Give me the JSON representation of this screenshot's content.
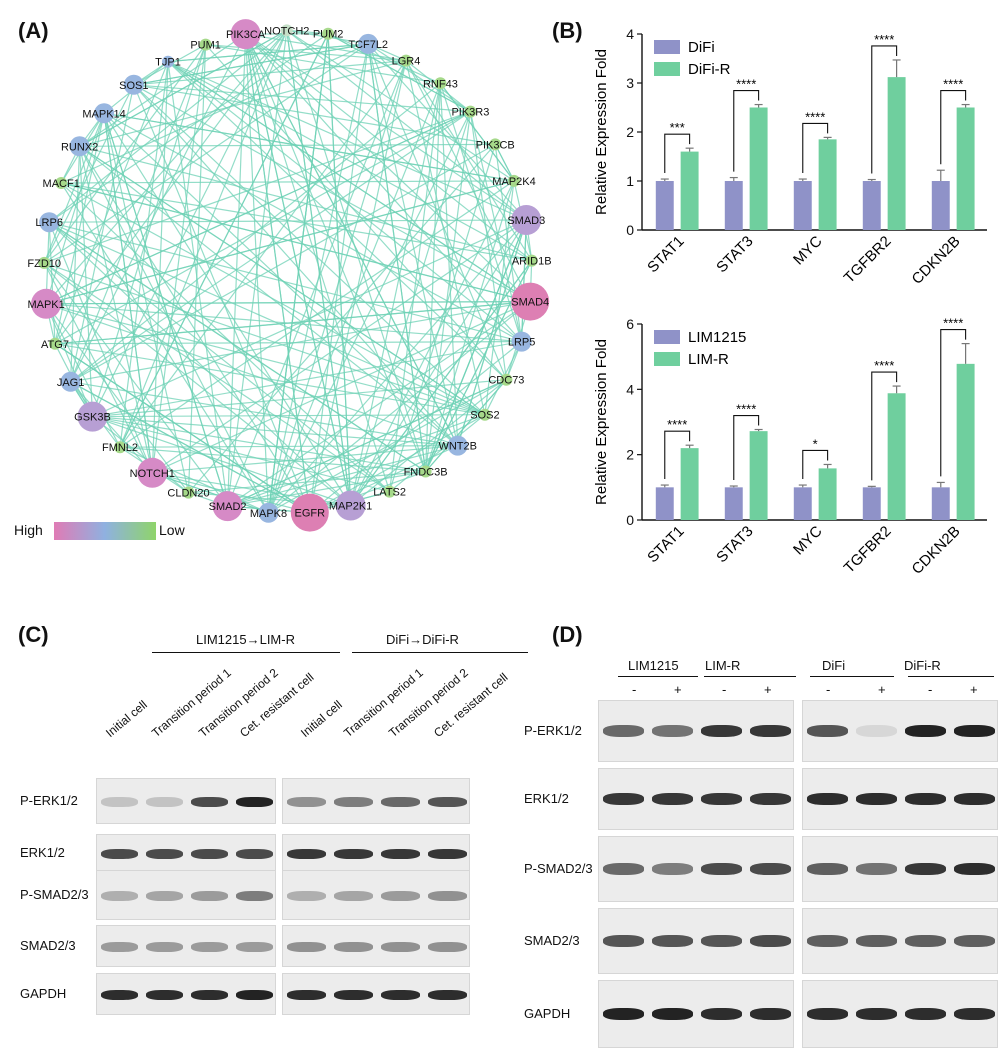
{
  "panels": {
    "a": {
      "label": "(A)"
    },
    "b": {
      "label": "(B)"
    },
    "c": {
      "label": "(C)"
    },
    "d": {
      "label": "(D)"
    }
  },
  "network": {
    "legend": {
      "high": "High",
      "low": "Low",
      "colors": [
        "#e07bb5",
        "#8fb1e0",
        "#8fd46a"
      ]
    },
    "edge_color": "#6fd1b5",
    "nodes": [
      {
        "name": "PIK3CA",
        "color": "#d68ac6",
        "size": 3
      },
      {
        "name": "NOTCH2",
        "color": "#c6e0c8",
        "size": 1
      },
      {
        "name": "PUM2",
        "color": "#a8d98c",
        "size": 1
      },
      {
        "name": "TCF7L2",
        "color": "#98b6e0",
        "size": 2
      },
      {
        "name": "LGR4",
        "color": "#a6d98a",
        "size": 1
      },
      {
        "name": "RNF43",
        "color": "#a6d98a",
        "size": 1
      },
      {
        "name": "PIK3R3",
        "color": "#a6d98a",
        "size": 1
      },
      {
        "name": "PIK3CB",
        "color": "#a6d98a",
        "size": 1
      },
      {
        "name": "MAP2K4",
        "color": "#a6d98a",
        "size": 1
      },
      {
        "name": "SMAD3",
        "color": "#b79fd4",
        "size": 3
      },
      {
        "name": "ARID1B",
        "color": "#a6d98a",
        "size": 1
      },
      {
        "name": "SMAD4",
        "color": "#dd7fb3",
        "size": 4
      },
      {
        "name": "LRP5",
        "color": "#98b6e0",
        "size": 2
      },
      {
        "name": "CDC73",
        "color": "#a6d98a",
        "size": 1
      },
      {
        "name": "SOS2",
        "color": "#a6d98a",
        "size": 1
      },
      {
        "name": "WNT2B",
        "color": "#98b6e0",
        "size": 2
      },
      {
        "name": "FNDC3B",
        "color": "#a6d98a",
        "size": 1
      },
      {
        "name": "LATS2",
        "color": "#a6d98a",
        "size": 1
      },
      {
        "name": "MAP2K1",
        "color": "#b79fd4",
        "size": 3
      },
      {
        "name": "EGFR",
        "color": "#dd7fb3",
        "size": 4
      },
      {
        "name": "MAPK8",
        "color": "#98b6e0",
        "size": 2
      },
      {
        "name": "SMAD2",
        "color": "#d68ac6",
        "size": 3
      },
      {
        "name": "CLDN20",
        "color": "#a6d98a",
        "size": 1
      },
      {
        "name": "NOTCH1",
        "color": "#d68ac6",
        "size": 3
      },
      {
        "name": "FMNL2",
        "color": "#a6d98a",
        "size": 1
      },
      {
        "name": "GSK3B",
        "color": "#b79fd4",
        "size": 3
      },
      {
        "name": "JAG1",
        "color": "#98b6e0",
        "size": 2
      },
      {
        "name": "ATG7",
        "color": "#a6d98a",
        "size": 1
      },
      {
        "name": "MAPK1",
        "color": "#d68ac6",
        "size": 3
      },
      {
        "name": "FZD10",
        "color": "#a6d98a",
        "size": 1
      },
      {
        "name": "LRP6",
        "color": "#98b6e0",
        "size": 2
      },
      {
        "name": "MACF1",
        "color": "#a6d98a",
        "size": 1
      },
      {
        "name": "RUNX2",
        "color": "#98b6e0",
        "size": 2
      },
      {
        "name": "MAPK14",
        "color": "#98b6e0",
        "size": 2
      },
      {
        "name": "SOS1",
        "color": "#98b6e0",
        "size": 2
      },
      {
        "name": "TJP1",
        "color": "#98b6e0",
        "size": 1
      },
      {
        "name": "PUM1",
        "color": "#a6d98a",
        "size": 1
      }
    ]
  },
  "chart_data": [
    {
      "type": "bar",
      "title": "",
      "ylabel": "Relative Expression Fold",
      "xlabel": "",
      "ylim": [
        0,
        4
      ],
      "yticks": [
        0,
        1,
        2,
        3,
        4
      ],
      "categories": [
        "STAT1",
        "STAT3",
        "MYC",
        "TGFBR2",
        "CDKN2B"
      ],
      "legend_position": "top-left",
      "series": [
        {
          "name": "DiFi",
          "color": "#8f92c8",
          "values": [
            1.0,
            1.0,
            1.0,
            1.0,
            1.0
          ],
          "errors": [
            0.04,
            0.07,
            0.04,
            0.03,
            0.22
          ]
        },
        {
          "name": "DiFi-R",
          "color": "#6fcf9e",
          "values": [
            1.6,
            2.5,
            1.85,
            3.12,
            2.5
          ],
          "errors": [
            0.07,
            0.06,
            0.04,
            0.35,
            0.06
          ]
        }
      ],
      "significance": [
        "***",
        "****",
        "****",
        "****",
        "****"
      ]
    },
    {
      "type": "bar",
      "title": "",
      "ylabel": "Relative Expression Fold",
      "xlabel": "",
      "ylim": [
        0,
        6
      ],
      "yticks": [
        0,
        2,
        4,
        6
      ],
      "categories": [
        "STAT1",
        "STAT3",
        "MYC",
        "TGFBR2",
        "CDKN2B"
      ],
      "legend_position": "top-left",
      "series": [
        {
          "name": "LIM1215",
          "color": "#8f92c8",
          "values": [
            1.0,
            1.0,
            1.0,
            1.0,
            1.0
          ],
          "errors": [
            0.07,
            0.04,
            0.07,
            0.03,
            0.15
          ]
        },
        {
          "name": "LIM-R",
          "color": "#6fcf9e",
          "values": [
            2.2,
            2.72,
            1.58,
            3.88,
            4.78
          ],
          "errors": [
            0.09,
            0.05,
            0.12,
            0.22,
            0.62
          ]
        }
      ],
      "significance": [
        "****",
        "****",
        "*",
        "****",
        "****"
      ]
    }
  ],
  "blot_c": {
    "groups": [
      {
        "label": "LIM1215→LIM-R"
      },
      {
        "label": "DiFi→DiFi-R"
      }
    ],
    "lanes": [
      "Initial cell",
      "Transition period 1",
      "Transition period 2",
      "Cet. resistant cell",
      "Initial cell",
      "Transition period 1",
      "Transition period 2",
      "Cet. resistant cell"
    ],
    "rows": [
      {
        "label": "P-ERK1/2",
        "intensity": [
          0.15,
          0.15,
          0.75,
          0.95,
          0.4,
          0.5,
          0.6,
          0.7
        ]
      },
      {
        "label": "ERK1/2",
        "intensity": [
          0.75,
          0.75,
          0.75,
          0.75,
          0.85,
          0.85,
          0.85,
          0.85
        ]
      },
      {
        "label": "P-SMAD2/3",
        "intensity": [
          0.25,
          0.3,
          0.35,
          0.5,
          0.25,
          0.3,
          0.35,
          0.4
        ]
      },
      {
        "label": "SMAD2/3",
        "intensity": [
          0.35,
          0.35,
          0.35,
          0.35,
          0.4,
          0.4,
          0.4,
          0.4
        ]
      },
      {
        "label": "GAPDH",
        "intensity": [
          0.9,
          0.9,
          0.9,
          0.95,
          0.9,
          0.9,
          0.9,
          0.9
        ]
      }
    ]
  },
  "blot_d": {
    "groups": [
      {
        "label": "LIM1215"
      },
      {
        "label": "LIM-R"
      },
      {
        "label": "DiFi"
      },
      {
        "label": "DiFi-R"
      }
    ],
    "treatments": [
      "-",
      "+",
      "-",
      "+",
      "-",
      "+",
      "-",
      "+"
    ],
    "rows": [
      {
        "label": "P-ERK1/2",
        "intensity": [
          0.6,
          0.55,
          0.85,
          0.85,
          0.7,
          0.05,
          0.95,
          0.95
        ]
      },
      {
        "label": "ERK1/2",
        "intensity": [
          0.85,
          0.85,
          0.85,
          0.85,
          0.9,
          0.9,
          0.9,
          0.9
        ]
      },
      {
        "label": "P-SMAD2/3",
        "intensity": [
          0.6,
          0.5,
          0.75,
          0.75,
          0.65,
          0.55,
          0.85,
          0.9
        ]
      },
      {
        "label": "SMAD2/3",
        "intensity": [
          0.7,
          0.7,
          0.7,
          0.75,
          0.65,
          0.65,
          0.65,
          0.65
        ]
      },
      {
        "label": "GAPDH",
        "intensity": [
          0.95,
          0.95,
          0.9,
          0.9,
          0.9,
          0.9,
          0.9,
          0.9
        ]
      }
    ]
  }
}
